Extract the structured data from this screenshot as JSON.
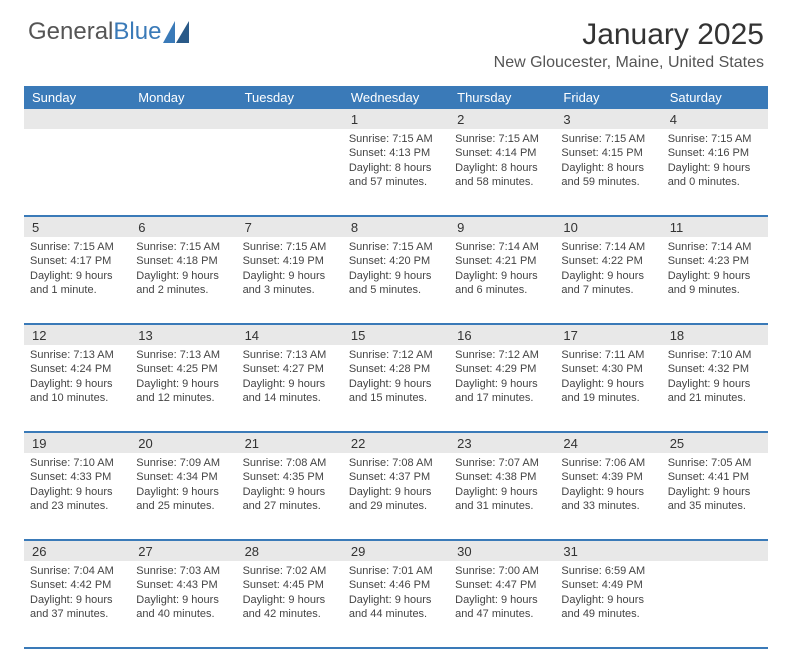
{
  "logo": {
    "part1": "General",
    "part2": "Blue"
  },
  "title": "January 2025",
  "location": "New Gloucester, Maine, United States",
  "dayNames": [
    "Sunday",
    "Monday",
    "Tuesday",
    "Wednesday",
    "Thursday",
    "Friday",
    "Saturday"
  ],
  "colors": {
    "headerBar": "#3a7ab8",
    "daynumBg": "#e8e8e8",
    "logoBlue": "#3a7ab8"
  },
  "weeks": [
    {
      "nums": [
        "",
        "",
        "",
        "1",
        "2",
        "3",
        "4"
      ],
      "cells": [
        null,
        null,
        null,
        {
          "sunrise": "Sunrise: 7:15 AM",
          "sunset": "Sunset: 4:13 PM",
          "d1": "Daylight: 8 hours",
          "d2": "and 57 minutes."
        },
        {
          "sunrise": "Sunrise: 7:15 AM",
          "sunset": "Sunset: 4:14 PM",
          "d1": "Daylight: 8 hours",
          "d2": "and 58 minutes."
        },
        {
          "sunrise": "Sunrise: 7:15 AM",
          "sunset": "Sunset: 4:15 PM",
          "d1": "Daylight: 8 hours",
          "d2": "and 59 minutes."
        },
        {
          "sunrise": "Sunrise: 7:15 AM",
          "sunset": "Sunset: 4:16 PM",
          "d1": "Daylight: 9 hours",
          "d2": "and 0 minutes."
        }
      ]
    },
    {
      "nums": [
        "5",
        "6",
        "7",
        "8",
        "9",
        "10",
        "11"
      ],
      "cells": [
        {
          "sunrise": "Sunrise: 7:15 AM",
          "sunset": "Sunset: 4:17 PM",
          "d1": "Daylight: 9 hours",
          "d2": "and 1 minute."
        },
        {
          "sunrise": "Sunrise: 7:15 AM",
          "sunset": "Sunset: 4:18 PM",
          "d1": "Daylight: 9 hours",
          "d2": "and 2 minutes."
        },
        {
          "sunrise": "Sunrise: 7:15 AM",
          "sunset": "Sunset: 4:19 PM",
          "d1": "Daylight: 9 hours",
          "d2": "and 3 minutes."
        },
        {
          "sunrise": "Sunrise: 7:15 AM",
          "sunset": "Sunset: 4:20 PM",
          "d1": "Daylight: 9 hours",
          "d2": "and 5 minutes."
        },
        {
          "sunrise": "Sunrise: 7:14 AM",
          "sunset": "Sunset: 4:21 PM",
          "d1": "Daylight: 9 hours",
          "d2": "and 6 minutes."
        },
        {
          "sunrise": "Sunrise: 7:14 AM",
          "sunset": "Sunset: 4:22 PM",
          "d1": "Daylight: 9 hours",
          "d2": "and 7 minutes."
        },
        {
          "sunrise": "Sunrise: 7:14 AM",
          "sunset": "Sunset: 4:23 PM",
          "d1": "Daylight: 9 hours",
          "d2": "and 9 minutes."
        }
      ]
    },
    {
      "nums": [
        "12",
        "13",
        "14",
        "15",
        "16",
        "17",
        "18"
      ],
      "cells": [
        {
          "sunrise": "Sunrise: 7:13 AM",
          "sunset": "Sunset: 4:24 PM",
          "d1": "Daylight: 9 hours",
          "d2": "and 10 minutes."
        },
        {
          "sunrise": "Sunrise: 7:13 AM",
          "sunset": "Sunset: 4:25 PM",
          "d1": "Daylight: 9 hours",
          "d2": "and 12 minutes."
        },
        {
          "sunrise": "Sunrise: 7:13 AM",
          "sunset": "Sunset: 4:27 PM",
          "d1": "Daylight: 9 hours",
          "d2": "and 14 minutes."
        },
        {
          "sunrise": "Sunrise: 7:12 AM",
          "sunset": "Sunset: 4:28 PM",
          "d1": "Daylight: 9 hours",
          "d2": "and 15 minutes."
        },
        {
          "sunrise": "Sunrise: 7:12 AM",
          "sunset": "Sunset: 4:29 PM",
          "d1": "Daylight: 9 hours",
          "d2": "and 17 minutes."
        },
        {
          "sunrise": "Sunrise: 7:11 AM",
          "sunset": "Sunset: 4:30 PM",
          "d1": "Daylight: 9 hours",
          "d2": "and 19 minutes."
        },
        {
          "sunrise": "Sunrise: 7:10 AM",
          "sunset": "Sunset: 4:32 PM",
          "d1": "Daylight: 9 hours",
          "d2": "and 21 minutes."
        }
      ]
    },
    {
      "nums": [
        "19",
        "20",
        "21",
        "22",
        "23",
        "24",
        "25"
      ],
      "cells": [
        {
          "sunrise": "Sunrise: 7:10 AM",
          "sunset": "Sunset: 4:33 PM",
          "d1": "Daylight: 9 hours",
          "d2": "and 23 minutes."
        },
        {
          "sunrise": "Sunrise: 7:09 AM",
          "sunset": "Sunset: 4:34 PM",
          "d1": "Daylight: 9 hours",
          "d2": "and 25 minutes."
        },
        {
          "sunrise": "Sunrise: 7:08 AM",
          "sunset": "Sunset: 4:35 PM",
          "d1": "Daylight: 9 hours",
          "d2": "and 27 minutes."
        },
        {
          "sunrise": "Sunrise: 7:08 AM",
          "sunset": "Sunset: 4:37 PM",
          "d1": "Daylight: 9 hours",
          "d2": "and 29 minutes."
        },
        {
          "sunrise": "Sunrise: 7:07 AM",
          "sunset": "Sunset: 4:38 PM",
          "d1": "Daylight: 9 hours",
          "d2": "and 31 minutes."
        },
        {
          "sunrise": "Sunrise: 7:06 AM",
          "sunset": "Sunset: 4:39 PM",
          "d1": "Daylight: 9 hours",
          "d2": "and 33 minutes."
        },
        {
          "sunrise": "Sunrise: 7:05 AM",
          "sunset": "Sunset: 4:41 PM",
          "d1": "Daylight: 9 hours",
          "d2": "and 35 minutes."
        }
      ]
    },
    {
      "nums": [
        "26",
        "27",
        "28",
        "29",
        "30",
        "31",
        ""
      ],
      "cells": [
        {
          "sunrise": "Sunrise: 7:04 AM",
          "sunset": "Sunset: 4:42 PM",
          "d1": "Daylight: 9 hours",
          "d2": "and 37 minutes."
        },
        {
          "sunrise": "Sunrise: 7:03 AM",
          "sunset": "Sunset: 4:43 PM",
          "d1": "Daylight: 9 hours",
          "d2": "and 40 minutes."
        },
        {
          "sunrise": "Sunrise: 7:02 AM",
          "sunset": "Sunset: 4:45 PM",
          "d1": "Daylight: 9 hours",
          "d2": "and 42 minutes."
        },
        {
          "sunrise": "Sunrise: 7:01 AM",
          "sunset": "Sunset: 4:46 PM",
          "d1": "Daylight: 9 hours",
          "d2": "and 44 minutes."
        },
        {
          "sunrise": "Sunrise: 7:00 AM",
          "sunset": "Sunset: 4:47 PM",
          "d1": "Daylight: 9 hours",
          "d2": "and 47 minutes."
        },
        {
          "sunrise": "Sunrise: 6:59 AM",
          "sunset": "Sunset: 4:49 PM",
          "d1": "Daylight: 9 hours",
          "d2": "and 49 minutes."
        },
        null
      ]
    }
  ]
}
